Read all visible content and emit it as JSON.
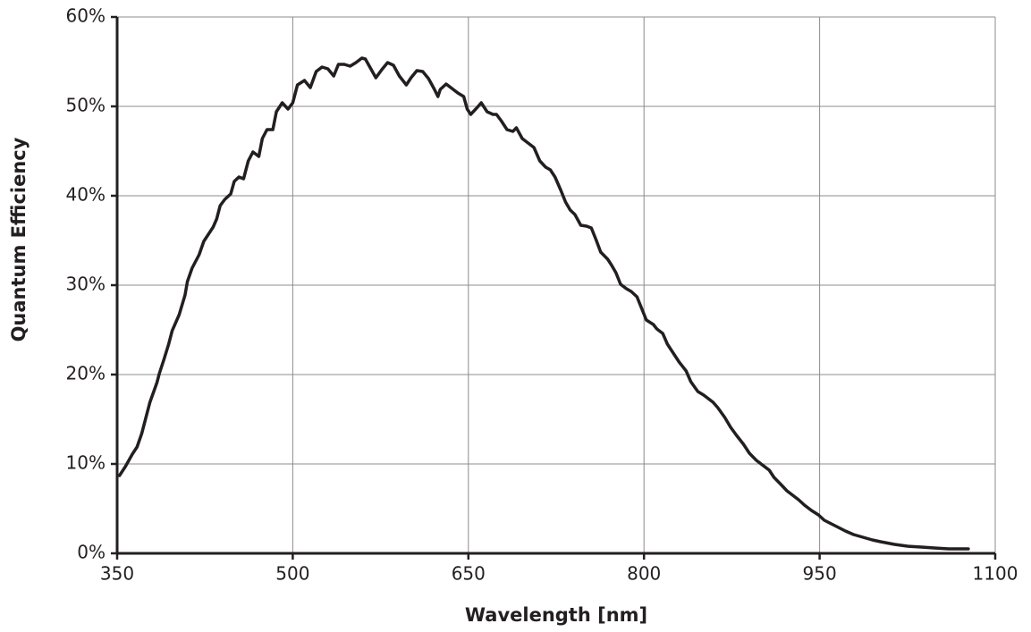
{
  "chart_data": {
    "type": "line",
    "xlabel": "Wavelength [nm]",
    "ylabel": "Quantum Efficiency",
    "x": [
      352,
      357,
      363,
      367,
      371,
      374,
      378,
      384,
      386,
      390,
      394,
      397,
      403,
      408,
      410,
      414,
      420,
      424,
      428,
      432,
      435,
      438,
      442,
      447,
      450,
      454,
      458,
      462,
      466,
      471,
      474,
      478,
      483,
      486,
      491,
      496,
      500,
      504,
      510,
      515,
      520,
      525,
      530,
      535,
      539,
      544,
      549,
      554,
      559,
      562,
      568,
      571,
      576,
      581,
      586,
      591,
      597,
      601,
      606,
      611,
      616,
      621,
      624,
      626,
      631,
      636,
      641,
      646,
      649,
      652,
      657,
      661,
      666,
      671,
      674,
      678,
      683,
      688,
      691,
      696,
      701,
      706,
      711,
      716,
      720,
      724,
      729,
      733,
      737,
      741,
      746,
      751,
      755,
      759,
      763,
      769,
      772,
      776,
      780,
      785,
      789,
      794,
      798,
      802,
      808,
      811,
      816,
      820,
      826,
      830,
      836,
      840,
      846,
      851,
      855,
      859,
      863,
      869,
      874,
      879,
      885,
      890,
      896,
      901,
      907,
      911,
      917,
      922,
      927,
      932,
      937,
      943,
      949,
      954,
      960,
      966,
      972,
      979,
      987,
      995,
      1002,
      1014,
      1025,
      1037,
      1048,
      1060,
      1077
    ],
    "series": [
      {
        "name": "Quantum Efficiency",
        "color": "#231f20",
        "values": [
          8.7,
          9.7,
          11.1,
          11.9,
          13.4,
          14.9,
          16.9,
          19.1,
          20.1,
          21.7,
          23.4,
          24.9,
          26.7,
          28.9,
          30.4,
          31.9,
          33.4,
          34.9,
          35.7,
          36.5,
          37.4,
          38.9,
          39.6,
          40.2,
          41.6,
          42.1,
          41.9,
          43.9,
          44.9,
          44.4,
          46.4,
          47.4,
          47.4,
          49.4,
          50.4,
          49.7,
          50.4,
          52.4,
          52.9,
          52.1,
          53.9,
          54.4,
          54.2,
          53.4,
          54.7,
          54.7,
          54.5,
          54.9,
          55.4,
          55.3,
          53.9,
          53.2,
          54.1,
          54.9,
          54.6,
          53.4,
          52.4,
          53.2,
          54.0,
          53.9,
          53.1,
          51.9,
          51.1,
          51.9,
          52.5,
          52.0,
          51.5,
          51.1,
          49.7,
          49.1,
          49.8,
          50.4,
          49.4,
          49.1,
          49.1,
          48.4,
          47.4,
          47.2,
          47.6,
          46.4,
          45.9,
          45.4,
          43.9,
          43.2,
          42.9,
          42.1,
          40.6,
          39.3,
          38.4,
          37.9,
          36.7,
          36.6,
          36.4,
          35.1,
          33.7,
          32.9,
          32.3,
          31.4,
          30.1,
          29.6,
          29.3,
          28.7,
          27.4,
          26.1,
          25.6,
          25.1,
          24.6,
          23.4,
          22.2,
          21.4,
          20.4,
          19.2,
          18.1,
          17.7,
          17.3,
          16.9,
          16.3,
          15.2,
          14.1,
          13.2,
          12.2,
          11.2,
          10.4,
          9.9,
          9.3,
          8.5,
          7.7,
          7.0,
          6.5,
          6.0,
          5.4,
          4.8,
          4.3,
          3.7,
          3.3,
          2.9,
          2.5,
          2.1,
          1.8,
          1.5,
          1.3,
          1.0,
          0.8,
          0.7,
          0.6,
          0.5,
          0.5
        ]
      }
    ],
    "xlim": [
      350,
      1100
    ],
    "xticks": [
      350,
      500,
      650,
      800,
      950,
      1100
    ],
    "ylim": [
      0,
      60
    ],
    "yticks": [
      {
        "value": 0,
        "label": "0%"
      },
      {
        "value": 10,
        "label": "10%"
      },
      {
        "value": 20,
        "label": "20%"
      },
      {
        "value": 30,
        "label": "30%"
      },
      {
        "value": 40,
        "label": "40%"
      },
      {
        "value": 50,
        "label": "50%"
      },
      {
        "value": 60,
        "label": "60%"
      }
    ],
    "grid": true
  }
}
